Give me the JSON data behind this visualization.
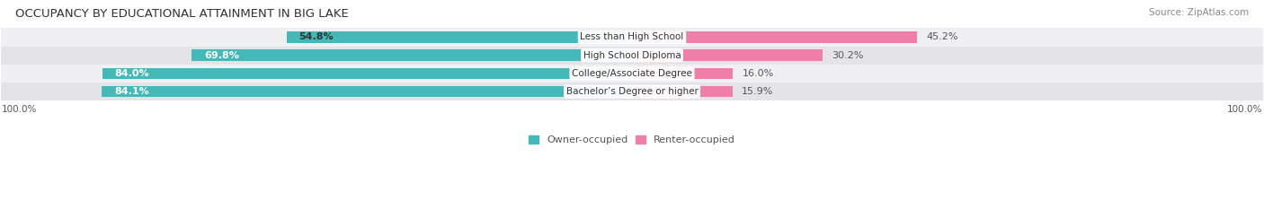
{
  "title": "OCCUPANCY BY EDUCATIONAL ATTAINMENT IN BIG LAKE",
  "source": "Source: ZipAtlas.com",
  "categories": [
    "Less than High School",
    "High School Diploma",
    "College/Associate Degree",
    "Bachelor’s Degree or higher"
  ],
  "owner_pct": [
    54.8,
    69.8,
    84.0,
    84.1
  ],
  "renter_pct": [
    45.2,
    30.2,
    16.0,
    15.9
  ],
  "owner_color": "#45b8b8",
  "renter_color": "#f07fa8",
  "row_bg_even": "#f0f0f2",
  "row_bg_odd": "#e4e4e8",
  "title_fontsize": 9.5,
  "label_fontsize": 8.0,
  "tick_fontsize": 7.5,
  "source_fontsize": 7.5,
  "legend_fontsize": 8,
  "axis_label_left": "100.0%",
  "axis_label_right": "100.0%",
  "background_color": "#ffffff"
}
